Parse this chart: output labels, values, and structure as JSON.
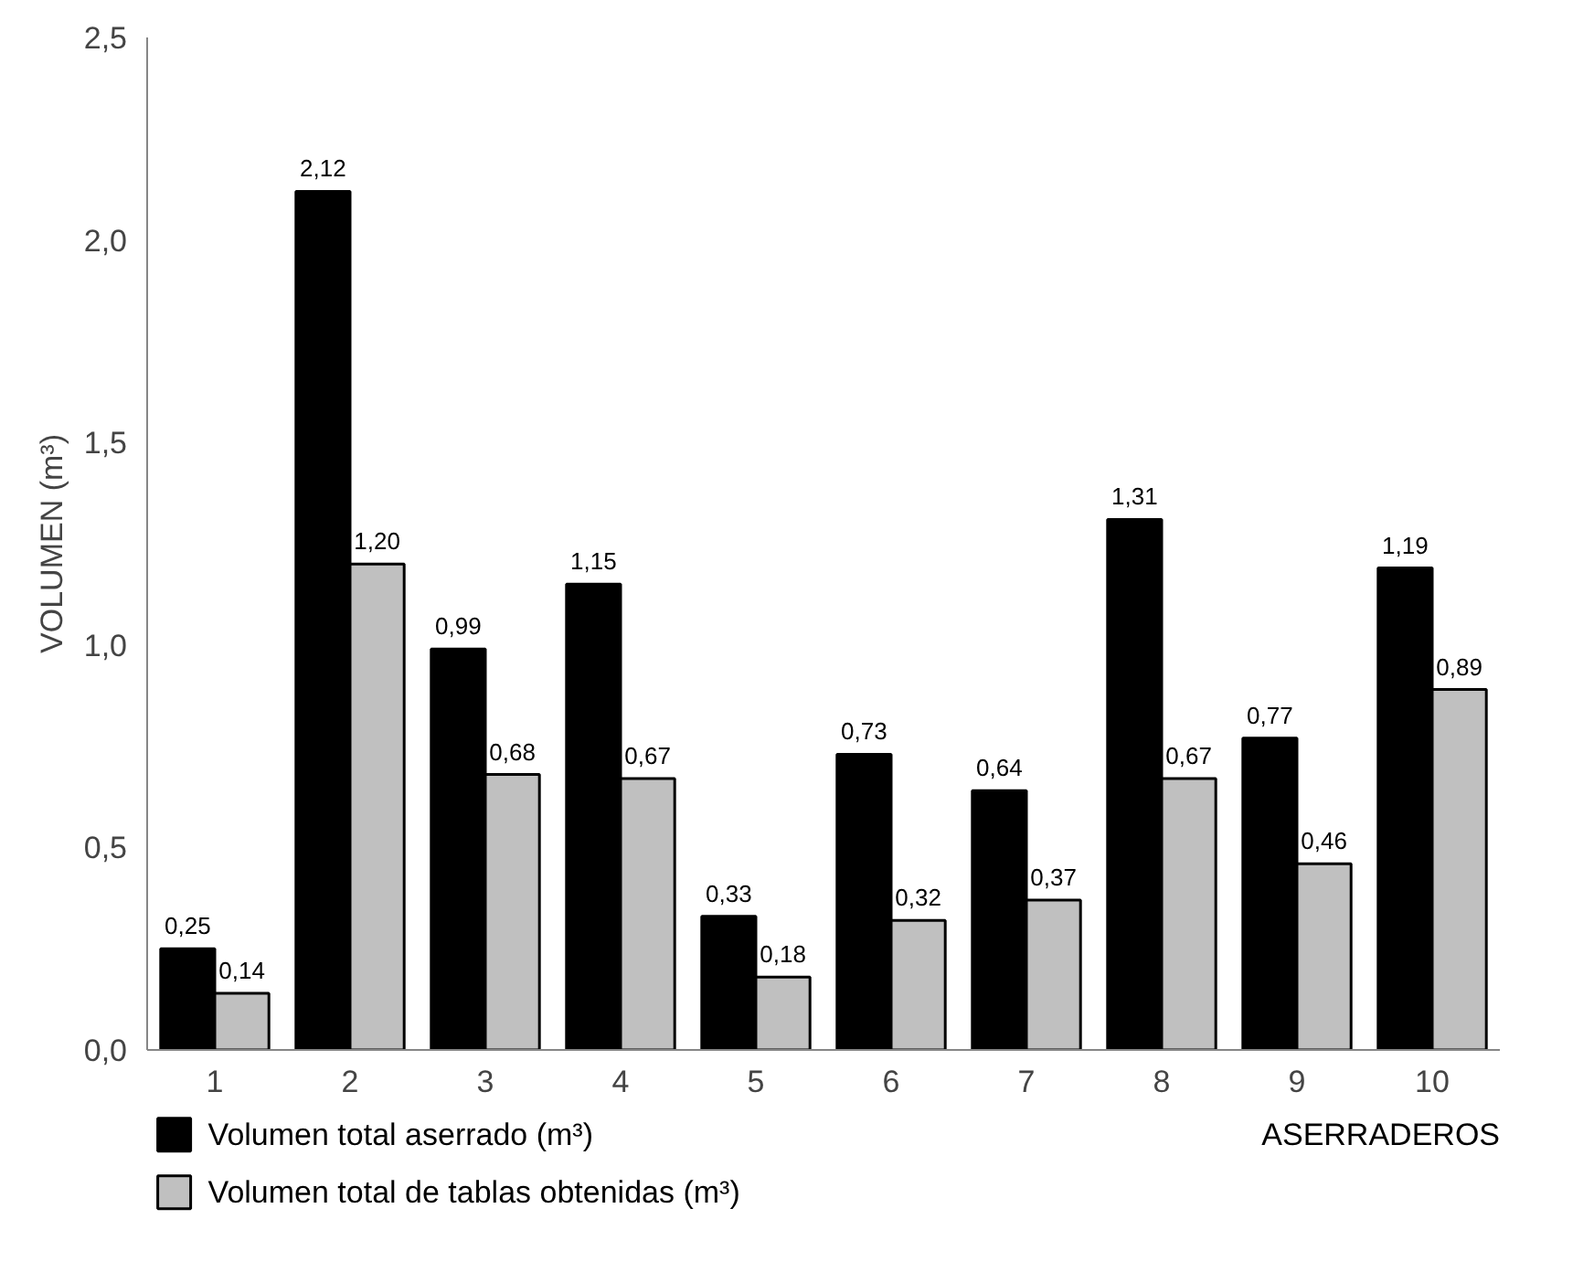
{
  "chart_data": {
    "type": "bar",
    "xlabel": "ASERRADEROS",
    "ylabel": "VOLUMEN (m³)",
    "categories": [
      "1",
      "2",
      "3",
      "4",
      "5",
      "6",
      "7",
      "8",
      "9",
      "10"
    ],
    "series": [
      {
        "name": "Volumen total aserrado (m³)",
        "color": "#000000",
        "values": [
          0.25,
          2.12,
          0.99,
          1.15,
          0.33,
          0.73,
          0.64,
          1.31,
          0.77,
          1.19
        ],
        "value_labels": [
          "0,25",
          "2,12",
          "0,99",
          "1,15",
          "0,33",
          "0,73",
          "0,64",
          "1,31",
          "0,77",
          "1,19"
        ]
      },
      {
        "name": "Volumen total de tablas obtenidas (m³)",
        "color": "#c0c0c0",
        "values": [
          0.14,
          1.2,
          0.68,
          0.67,
          0.18,
          0.32,
          0.37,
          0.67,
          0.46,
          0.89
        ],
        "value_labels": [
          "0,14",
          "1,20",
          "0,68",
          "0,67",
          "0,18",
          "0,32",
          "0,37",
          "0,67",
          "0,46",
          "0,89"
        ]
      }
    ],
    "ylim": [
      0,
      2.5
    ],
    "yticks": [
      {
        "value": 0,
        "label": "0,0"
      },
      {
        "value": 0.5,
        "label": "0,5"
      },
      {
        "value": 1.0,
        "label": "1,0"
      },
      {
        "value": 1.5,
        "label": "1,5"
      },
      {
        "value": 2.0,
        "label": "2,0"
      },
      {
        "value": 2.5,
        "label": "2,5"
      }
    ],
    "grid": false,
    "legend": "bottom"
  }
}
